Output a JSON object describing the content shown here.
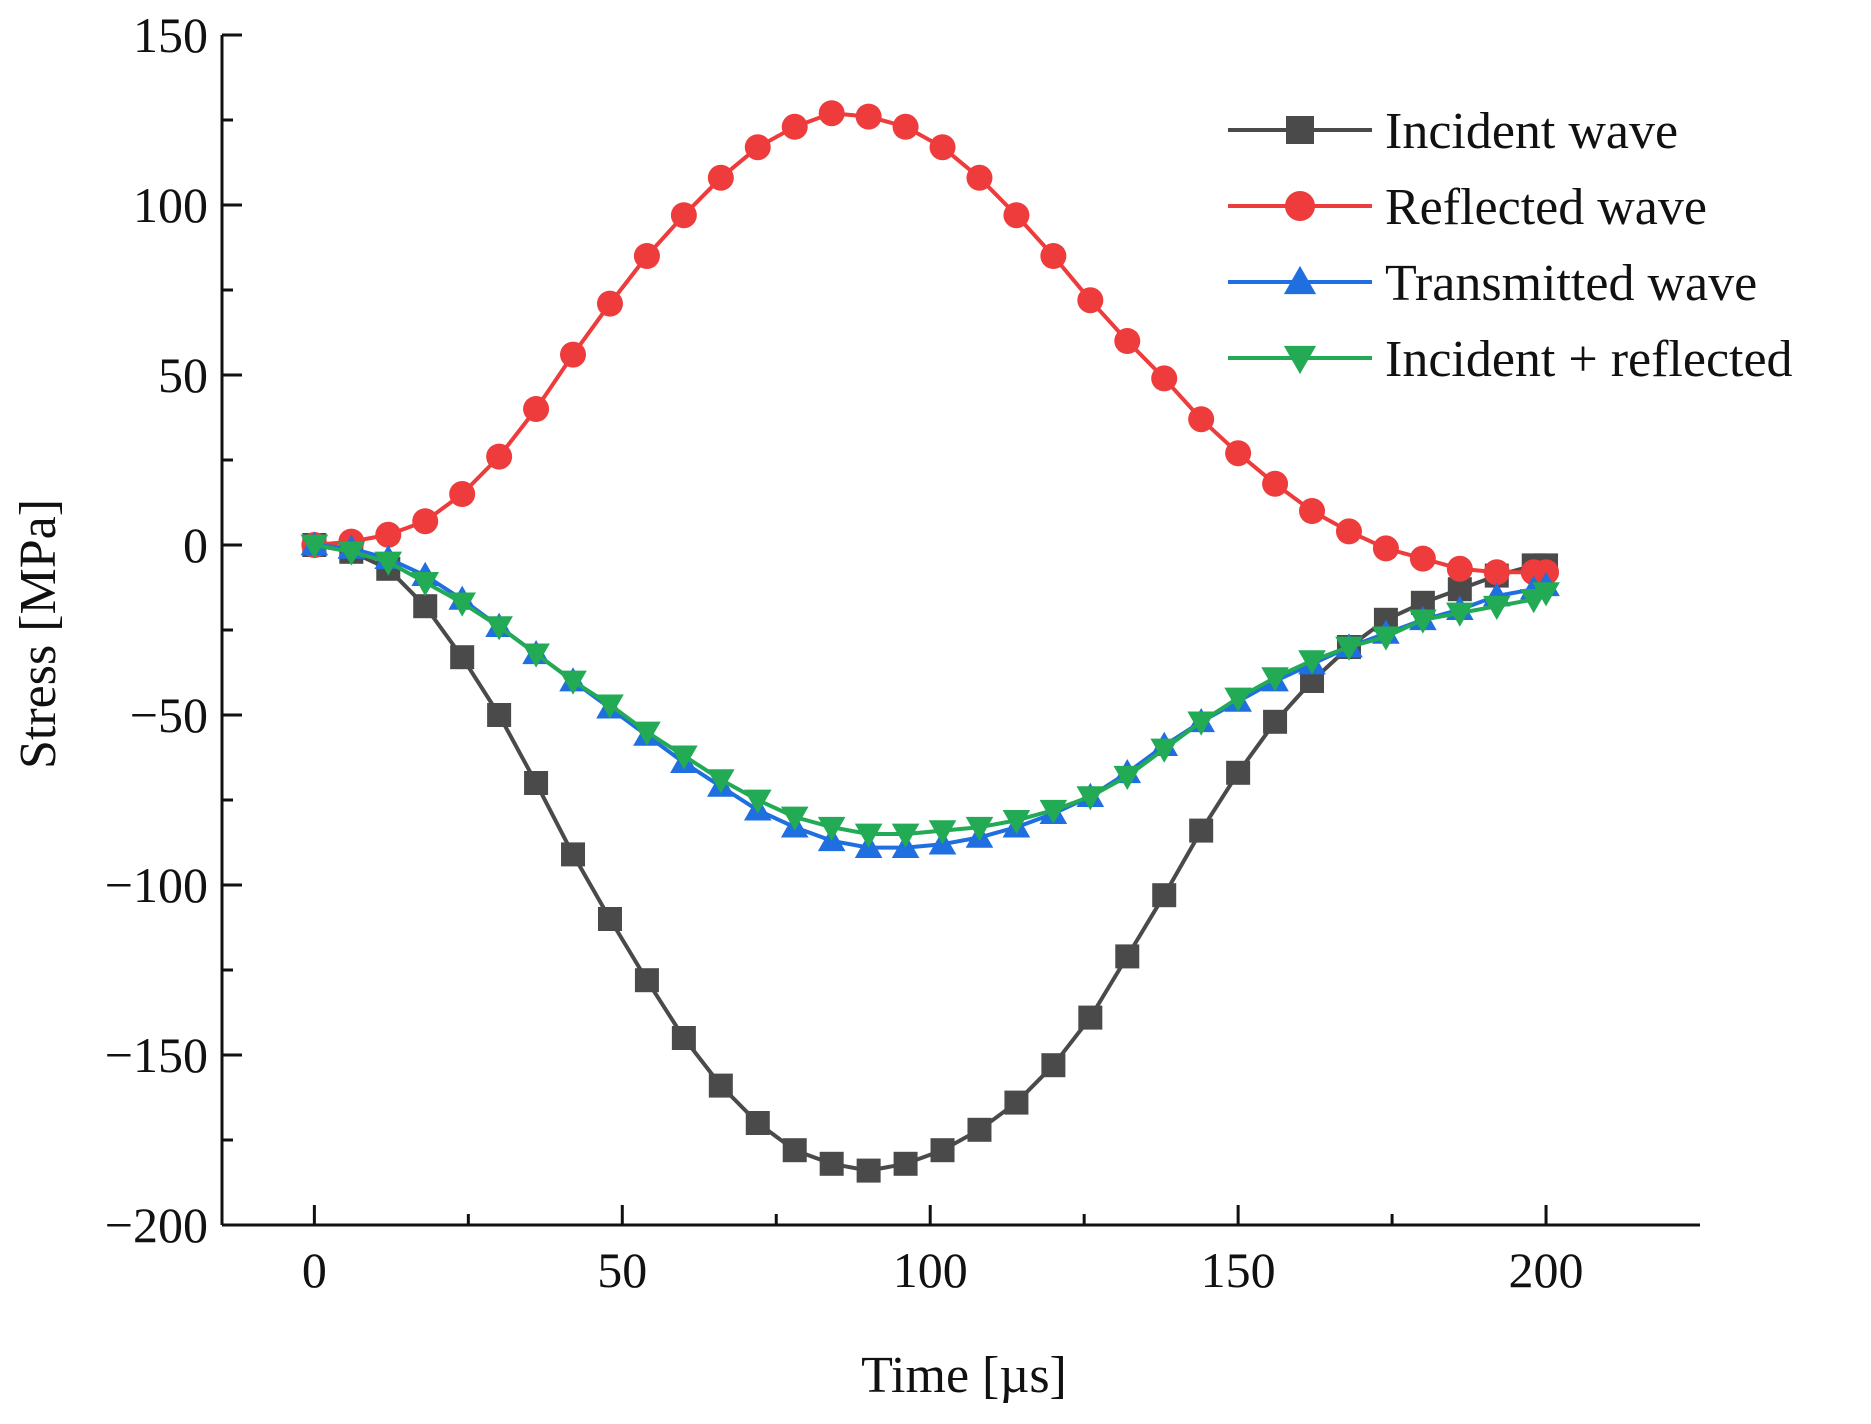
{
  "chart_data": {
    "type": "line",
    "title": "",
    "xlabel": "Time [µs]",
    "ylabel": "Stress [MPa]",
    "xlim": [
      -15,
      225
    ],
    "ylim": [
      -200,
      150
    ],
    "x_ticks": [
      0,
      50,
      100,
      150,
      200
    ],
    "y_ticks": [
      150,
      100,
      50,
      0,
      -50,
      -100,
      -150,
      -200
    ],
    "x_tick_labels": [
      "0",
      "50",
      "100",
      "150",
      "200"
    ],
    "y_tick_labels": [
      "150",
      "100",
      "50",
      "0",
      "−50",
      "−100",
      "−150",
      "−200"
    ],
    "grid": false,
    "legend_position": "top-right",
    "x": [
      0,
      6,
      12,
      18,
      24,
      30,
      36,
      42,
      48,
      54,
      60,
      66,
      72,
      78,
      84,
      90,
      96,
      102,
      108,
      114,
      120,
      126,
      132,
      138,
      144,
      150,
      156,
      162,
      168,
      174,
      180,
      186,
      192,
      198,
      200
    ],
    "series": [
      {
        "name": "Incident wave",
        "color": "#4a4a4a",
        "marker": "square",
        "values": [
          0,
          -2,
          -7,
          -18,
          -33,
          -50,
          -70,
          -91,
          -110,
          -128,
          -145,
          -159,
          -170,
          -178,
          -182,
          -184,
          -182,
          -178,
          -172,
          -164,
          -153,
          -139,
          -121,
          -103,
          -84,
          -67,
          -52,
          -40,
          -30,
          -22,
          -17,
          -13,
          -9,
          -6,
          -6
        ]
      },
      {
        "name": "Reflected wave",
        "color": "#ee3b3b",
        "marker": "circle",
        "values": [
          0,
          1,
          3,
          7,
          15,
          26,
          40,
          56,
          71,
          85,
          97,
          108,
          117,
          123,
          127,
          126,
          123,
          117,
          108,
          97,
          85,
          72,
          60,
          49,
          37,
          27,
          18,
          10,
          4,
          -1,
          -4,
          -7,
          -8,
          -8,
          -8
        ]
      },
      {
        "name": "Transmitted wave",
        "color": "#1f6fe0",
        "marker": "triangle-up",
        "values": [
          0,
          -1,
          -4,
          -9,
          -16,
          -24,
          -32,
          -40,
          -48,
          -56,
          -64,
          -71,
          -78,
          -83,
          -87,
          -89,
          -89,
          -88,
          -86,
          -83,
          -79,
          -74,
          -67,
          -59,
          -52,
          -46,
          -40,
          -35,
          -30,
          -26,
          -22,
          -19,
          -15,
          -13,
          -12
        ]
      },
      {
        "name": "Incident + reflected",
        "color": "#22aa55",
        "marker": "triangle-down",
        "values": [
          0,
          -2,
          -5,
          -11,
          -17,
          -24,
          -32,
          -40,
          -47,
          -55,
          -62,
          -69,
          -75,
          -80,
          -83,
          -85,
          -85,
          -84,
          -83,
          -81,
          -78,
          -74,
          -68,
          -60,
          -52,
          -45,
          -39,
          -34,
          -30,
          -27,
          -22,
          -20,
          -18,
          -16,
          -14
        ]
      }
    ]
  }
}
